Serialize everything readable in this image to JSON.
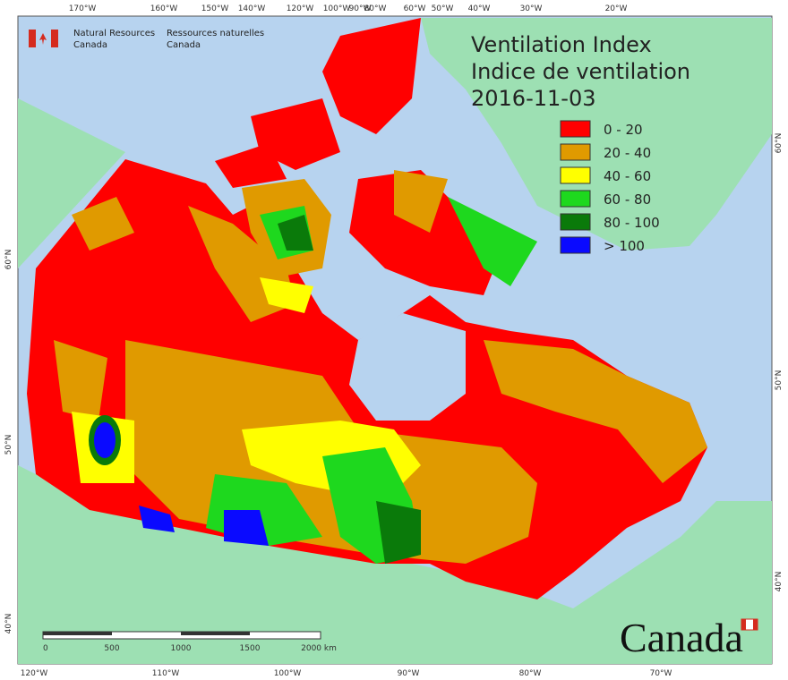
{
  "header": {
    "agency_en": [
      "Natural Resources",
      "Canada"
    ],
    "agency_fr": [
      "Ressources naturelles",
      "Canada"
    ]
  },
  "title": [
    "Ventilation Index",
    "Indice de ventilation",
    "2016-11-03"
  ],
  "legend": [
    {
      "label": "0 - 20",
      "color": "#ff0000"
    },
    {
      "label": "20 - 40",
      "color": "#e09a00"
    },
    {
      "label": "40 - 60",
      "color": "#ffff00"
    },
    {
      "label": "60 - 80",
      "color": "#1ed81e"
    },
    {
      "label": "80 - 100",
      "color": "#0a7a0a"
    },
    {
      "label": "> 100",
      "color": "#0a0aff"
    }
  ],
  "top_labels": [
    "170°W",
    "160°W",
    "150°W",
    "140°W",
    "120°W",
    "100°W",
    "90°W",
    "80°W",
    "60°W",
    "50°W",
    "40°W",
    "30°W",
    "20°W"
  ],
  "bottom_labels": [
    "120°W",
    "110°W",
    "100°W",
    "90°W",
    "80°W",
    "70°W"
  ],
  "left_labels": [
    "60°N",
    "50°N",
    "40°N"
  ],
  "right_labels": [
    "60°N",
    "50°N",
    "40°N"
  ],
  "scale": [
    "0",
    "500",
    "1000",
    "1500",
    "2000 km"
  ],
  "wordmark": "Canada"
}
